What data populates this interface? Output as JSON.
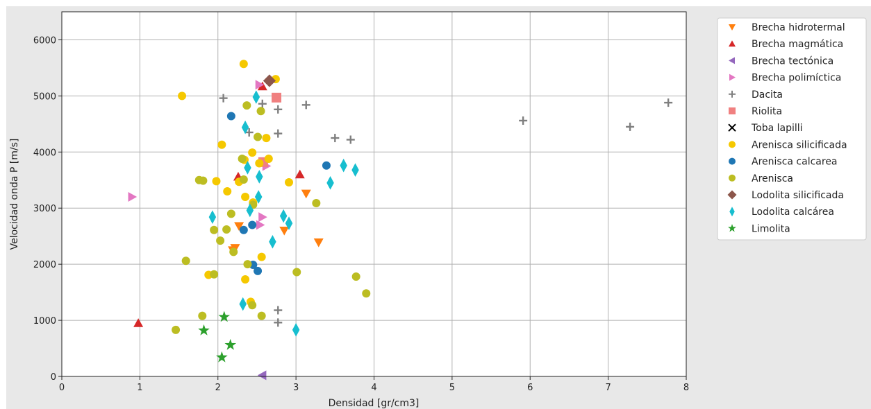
{
  "chart_data": {
    "type": "scatter",
    "xlabel": "Densidad [gr/cm3]",
    "ylabel": "Velocidad onda P [m/s]",
    "xlim": [
      0,
      8
    ],
    "ylim": [
      0,
      6500
    ],
    "xticks": [
      "0",
      "1",
      "2",
      "3",
      "4",
      "5",
      "6",
      "7",
      "8"
    ],
    "yticks": [
      "0",
      "1000",
      "2000",
      "3000",
      "4000",
      "5000",
      "6000"
    ],
    "grid": true,
    "legend_position": "right",
    "series": [
      {
        "name": "Brecha hidrotermal",
        "marker": "triangle-down",
        "color": "#ff7f0e",
        "points": [
          [
            2.27,
            2680
          ],
          [
            2.22,
            2290
          ],
          [
            2.19,
            2250
          ],
          [
            2.85,
            2600
          ],
          [
            3.13,
            3260
          ],
          [
            3.29,
            2390
          ]
        ]
      },
      {
        "name": "Brecha magmática",
        "marker": "triangle-up",
        "color": "#d62728",
        "points": [
          [
            0.98,
            950
          ],
          [
            2.26,
            3560
          ],
          [
            3.05,
            3600
          ],
          [
            2.57,
            5170
          ]
        ]
      },
      {
        "name": "Brecha tectónica",
        "marker": "triangle-left",
        "color": "#9467bd",
        "points": [
          [
            2.57,
            20
          ]
        ]
      },
      {
        "name": "Brecha polimíctica",
        "marker": "triangle-right",
        "color": "#e377c2",
        "points": [
          [
            0.9,
            3200
          ],
          [
            2.53,
            5200
          ],
          [
            2.57,
            2840
          ],
          [
            2.62,
            3750
          ],
          [
            2.54,
            2700
          ]
        ]
      },
      {
        "name": "Dacita",
        "marker": "plus",
        "color": "#7f7f7f",
        "points": [
          [
            2.07,
            4960
          ],
          [
            2.4,
            4350
          ],
          [
            2.57,
            4860
          ],
          [
            2.77,
            4760
          ],
          [
            2.77,
            4330
          ],
          [
            3.13,
            4840
          ],
          [
            3.5,
            4250
          ],
          [
            3.7,
            4220
          ],
          [
            5.91,
            4560
          ],
          [
            7.28,
            4450
          ],
          [
            7.77,
            4880
          ],
          [
            2.77,
            1180
          ],
          [
            2.77,
            960
          ]
        ]
      },
      {
        "name": "Riolita",
        "marker": "square",
        "color": "#f08080",
        "points": [
          [
            2.75,
            4970
          ],
          [
            2.58,
            3820
          ]
        ]
      },
      {
        "name": "Toba lapilli",
        "marker": "x",
        "color": "#000000",
        "points": []
      },
      {
        "name": "Arenisca silicificada",
        "marker": "circle",
        "color": "#f5c800",
        "points": [
          [
            2.33,
            5570
          ],
          [
            1.54,
            5000
          ],
          [
            2.74,
            5300
          ],
          [
            2.05,
            4130
          ],
          [
            2.44,
            3990
          ],
          [
            2.62,
            4250
          ],
          [
            2.65,
            3880
          ],
          [
            2.53,
            3800
          ],
          [
            2.34,
            3860
          ],
          [
            1.98,
            3480
          ],
          [
            2.12,
            3300
          ],
          [
            2.35,
            3200
          ],
          [
            2.91,
            3460
          ],
          [
            2.27,
            3470
          ],
          [
            2.45,
            3100
          ],
          [
            1.88,
            1810
          ],
          [
            2.56,
            2130
          ],
          [
            2.35,
            1730
          ],
          [
            2.42,
            1330
          ]
        ]
      },
      {
        "name": "Arenisca calcarea",
        "marker": "circle",
        "color": "#1f77b4",
        "points": [
          [
            2.17,
            4640
          ],
          [
            3.39,
            3760
          ],
          [
            2.33,
            2610
          ],
          [
            2.44,
            2700
          ],
          [
            2.51,
            1880
          ],
          [
            2.45,
            1990
          ]
        ]
      },
      {
        "name": "Arenisca",
        "marker": "circle",
        "color": "#bcbd22",
        "points": [
          [
            2.37,
            4830
          ],
          [
            2.55,
            4730
          ],
          [
            2.51,
            4270
          ],
          [
            2.31,
            3880
          ],
          [
            1.76,
            3500
          ],
          [
            1.81,
            3490
          ],
          [
            2.33,
            3510
          ],
          [
            2.45,
            3060
          ],
          [
            3.26,
            3090
          ],
          [
            2.17,
            2900
          ],
          [
            1.95,
            2610
          ],
          [
            2.11,
            2620
          ],
          [
            2.03,
            2420
          ],
          [
            2.2,
            2220
          ],
          [
            1.59,
            2060
          ],
          [
            2.38,
            2000
          ],
          [
            1.95,
            1820
          ],
          [
            3.01,
            1860
          ],
          [
            3.77,
            1780
          ],
          [
            3.9,
            1480
          ],
          [
            2.44,
            1270
          ],
          [
            2.56,
            1080
          ],
          [
            1.8,
            1080
          ],
          [
            1.46,
            830
          ]
        ]
      },
      {
        "name": "Lodolita silicificada",
        "marker": "diamond",
        "color": "#8c564b",
        "points": [
          [
            2.66,
            5270
          ]
        ]
      },
      {
        "name": "Lodolita calcárea",
        "marker": "thin-diamond",
        "color": "#17becf",
        "points": [
          [
            2.49,
            4980
          ],
          [
            2.35,
            4440
          ],
          [
            2.38,
            3720
          ],
          [
            2.53,
            3560
          ],
          [
            2.52,
            3200
          ],
          [
            2.41,
            2960
          ],
          [
            1.93,
            2840
          ],
          [
            2.84,
            2860
          ],
          [
            2.91,
            2730
          ],
          [
            2.7,
            2400
          ],
          [
            3.44,
            3450
          ],
          [
            3.61,
            3760
          ],
          [
            3.76,
            3680
          ],
          [
            2.32,
            1290
          ],
          [
            3.0,
            830
          ]
        ]
      },
      {
        "name": "Limolita",
        "marker": "star",
        "color": "#2ca02c",
        "points": [
          [
            2.08,
            1060
          ],
          [
            1.82,
            820
          ],
          [
            2.16,
            560
          ],
          [
            2.05,
            340
          ]
        ]
      }
    ]
  }
}
